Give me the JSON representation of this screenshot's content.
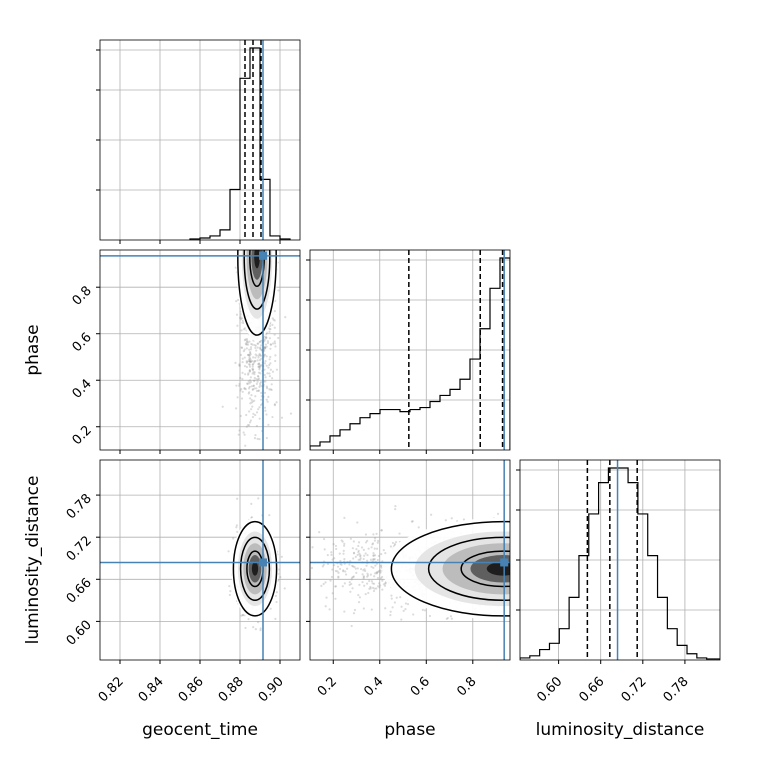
{
  "chart_data": {
    "type": "corner",
    "parameters": [
      "geocent_time",
      "phase",
      "luminosity_distance"
    ],
    "axis_labels": {
      "geocent_time": "geocent_time",
      "phase": "phase",
      "luminosity_distance": "luminosity_distance"
    },
    "ranges": {
      "geocent_time": [
        0.81,
        0.91
      ],
      "phase": [
        0.1,
        0.96
      ],
      "luminosity_distance": [
        0.545,
        0.83
      ]
    },
    "ticks": {
      "geocent_time": [
        "0.82",
        "0.84",
        "0.86",
        "0.88",
        "0.90"
      ],
      "phase": [
        "0.2",
        "0.4",
        "0.6",
        "0.8"
      ],
      "luminosity_distance": [
        "0.60",
        "0.66",
        "0.72",
        "0.78"
      ]
    },
    "truths": {
      "geocent_time": 0.8915,
      "phase": 0.935,
      "luminosity_distance": 0.684
    },
    "quantiles": {
      "geocent_time": [
        0.8825,
        0.8865,
        0.8905
      ],
      "phase": [
        0.525,
        0.832,
        0.928
      ],
      "luminosity_distance": [
        0.641,
        0.673,
        0.712
      ]
    },
    "histograms": {
      "geocent_time": {
        "edges": [
          0.855,
          0.86,
          0.865,
          0.87,
          0.875,
          0.88,
          0.885,
          0.89,
          0.895,
          0.9,
          0.905
        ],
        "counts": [
          0.005,
          0.01,
          0.02,
          0.05,
          0.25,
          0.8,
          0.95,
          0.3,
          0.02,
          0.005
        ]
      },
      "phase": {
        "edges": [
          0.1,
          0.143,
          0.186,
          0.229,
          0.272,
          0.315,
          0.358,
          0.401,
          0.444,
          0.487,
          0.53,
          0.573,
          0.616,
          0.659,
          0.702,
          0.745,
          0.788,
          0.831,
          0.874,
          0.917,
          0.96
        ],
        "counts": [
          0.02,
          0.04,
          0.07,
          0.1,
          0.13,
          0.16,
          0.18,
          0.2,
          0.2,
          0.19,
          0.2,
          0.21,
          0.24,
          0.27,
          0.3,
          0.35,
          0.45,
          0.6,
          0.8,
          0.95
        ]
      },
      "luminosity_distance": {
        "edges": [
          0.545,
          0.559,
          0.573,
          0.587,
          0.601,
          0.615,
          0.629,
          0.643,
          0.657,
          0.671,
          0.685,
          0.699,
          0.713,
          0.727,
          0.741,
          0.755,
          0.769,
          0.783,
          0.797,
          0.811,
          0.83
        ],
        "counts": [
          0.01,
          0.02,
          0.05,
          0.08,
          0.15,
          0.3,
          0.5,
          0.7,
          0.85,
          0.92,
          0.92,
          0.85,
          0.7,
          0.5,
          0.3,
          0.15,
          0.07,
          0.03,
          0.01,
          0.005
        ]
      }
    },
    "posterior_peaks": {
      "phase_vs_geocent_time": {
        "x": 0.8885,
        "y": 0.93
      },
      "luminosity_distance_vs_geocent_time": {
        "x": 0.8875,
        "y": 0.675
      },
      "luminosity_distance_vs_phase": {
        "x": 0.93,
        "y": 0.675
      }
    },
    "grid": true,
    "colors": {
      "truth": "#4682b4",
      "contour": "#000000",
      "samples": "#9a9a9a",
      "grid": "#b0b0b0"
    }
  }
}
